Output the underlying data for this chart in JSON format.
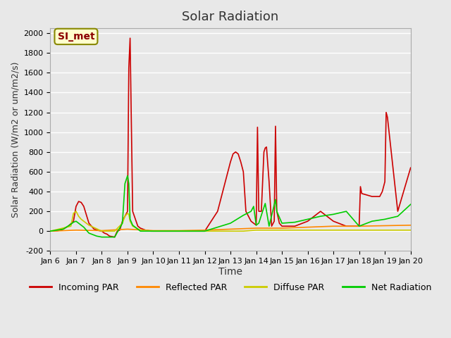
{
  "title": "Solar Radiation",
  "xlabel": "Time",
  "ylabel": "Solar Radiation (W/m2 or um/m2/s)",
  "ylim": [
    -200,
    2050
  ],
  "xlim": [
    0,
    14
  ],
  "xtick_labels": [
    "Jan 6",
    "Jan 7",
    "Jan 8",
    "Jan 9",
    "Jan 10",
    "Jan 11",
    "Jan 12",
    "Jan 13",
    "Jan 14",
    "Jan 15",
    "Jan 16",
    "Jan 17",
    "Jan 18",
    "Jan 19",
    "Jan 20"
  ],
  "xtick_positions": [
    0,
    1,
    2,
    3,
    4,
    5,
    6,
    7,
    8,
    9,
    10,
    11,
    12,
    13,
    14
  ],
  "ytick_positions": [
    -200,
    0,
    200,
    400,
    600,
    800,
    1000,
    1200,
    1400,
    1600,
    1800,
    2000
  ],
  "background_color": "#e8e8e8",
  "plot_bg_color": "#e8e8e8",
  "grid_color": "#ffffff",
  "annotation_text": "SI_met",
  "annotation_color": "#8b0000",
  "annotation_bg": "#ffffcc",
  "series": {
    "incoming_par": {
      "color": "#cc0000",
      "label": "Incoming PAR",
      "x": [
        0,
        0.3,
        0.5,
        0.7,
        0.9,
        1.0,
        1.1,
        1.2,
        1.3,
        1.5,
        1.7,
        1.9,
        2.0,
        2.1,
        2.2,
        2.3,
        2.5,
        2.6,
        2.7,
        2.8,
        2.9,
        3.0,
        3.05,
        3.1,
        3.2,
        3.4,
        3.5,
        3.6,
        3.7,
        3.8,
        3.9,
        4.0,
        5.0,
        6.0,
        6.5,
        7.0,
        7.1,
        7.2,
        7.3,
        7.4,
        7.5,
        7.6,
        7.7,
        7.8,
        7.9,
        8.0,
        8.05,
        8.1,
        8.2,
        8.3,
        8.35,
        8.4,
        8.5,
        8.6,
        8.7,
        8.75,
        8.8,
        8.9,
        9.0,
        9.5,
        10.0,
        10.5,
        11.0,
        11.5,
        12.0,
        12.05,
        12.1,
        12.5,
        12.8,
        12.9,
        13.0,
        13.05,
        13.1,
        13.5,
        14.0
      ],
      "y": [
        0,
        5,
        20,
        50,
        100,
        250,
        300,
        290,
        250,
        80,
        20,
        5,
        0,
        -20,
        -30,
        -50,
        -60,
        0,
        10,
        100,
        150,
        200,
        1650,
        1950,
        200,
        50,
        30,
        20,
        10,
        5,
        0,
        0,
        0,
        0,
        200,
        700,
        780,
        800,
        780,
        700,
        600,
        200,
        150,
        100,
        80,
        60,
        1050,
        200,
        200,
        800,
        840,
        850,
        500,
        50,
        100,
        1060,
        200,
        80,
        50,
        50,
        100,
        200,
        100,
        50,
        50,
        450,
        380,
        350,
        350,
        400,
        500,
        1200,
        1150,
        200,
        640
      ]
    },
    "reflected_par": {
      "color": "#ff8800",
      "label": "Reflected PAR",
      "x": [
        0,
        1.0,
        2.0,
        3.0,
        4.0,
        5.0,
        6.0,
        7.0,
        8.0,
        9.0,
        10.0,
        11.0,
        12.0,
        13.0,
        14.0
      ],
      "y": [
        0,
        10,
        5,
        20,
        5,
        5,
        10,
        20,
        30,
        30,
        40,
        50,
        50,
        55,
        60
      ]
    },
    "diffuse_par": {
      "color": "#cccc00",
      "label": "Diffuse PAR",
      "x": [
        0,
        0.8,
        0.9,
        1.0,
        1.1,
        1.2,
        1.5,
        2.0,
        2.5,
        2.8,
        2.9,
        3.0,
        3.05,
        3.1,
        3.2,
        3.5,
        4.0,
        5.0,
        6.0,
        7.0,
        7.5,
        8.0,
        9.0,
        10.0,
        11.0,
        12.0,
        13.0,
        14.0
      ],
      "y": [
        0,
        50,
        180,
        200,
        150,
        120,
        60,
        0,
        0,
        80,
        150,
        180,
        170,
        100,
        50,
        10,
        0,
        0,
        0,
        0,
        0,
        10,
        10,
        10,
        10,
        10,
        10,
        10
      ]
    },
    "net_radiation": {
      "color": "#00cc00",
      "label": "Net Radiation",
      "x": [
        0,
        0.5,
        0.8,
        0.9,
        1.0,
        1.1,
        1.2,
        1.3,
        1.5,
        1.8,
        2.0,
        2.5,
        2.8,
        2.9,
        3.0,
        3.05,
        3.1,
        3.2,
        3.5,
        4.0,
        5.0,
        6.0,
        7.0,
        7.5,
        7.8,
        7.9,
        8.0,
        8.1,
        8.35,
        8.5,
        8.75,
        8.8,
        9.0,
        9.5,
        10.0,
        10.5,
        11.0,
        11.5,
        12.0,
        12.5,
        13.0,
        13.5,
        14.0
      ],
      "y": [
        0,
        20,
        70,
        90,
        100,
        80,
        60,
        40,
        -20,
        -50,
        -60,
        -60,
        80,
        480,
        560,
        480,
        120,
        60,
        0,
        0,
        0,
        0,
        80,
        160,
        200,
        250,
        60,
        80,
        280,
        50,
        320,
        200,
        80,
        90,
        120,
        150,
        170,
        200,
        50,
        100,
        120,
        150,
        270
      ]
    }
  }
}
